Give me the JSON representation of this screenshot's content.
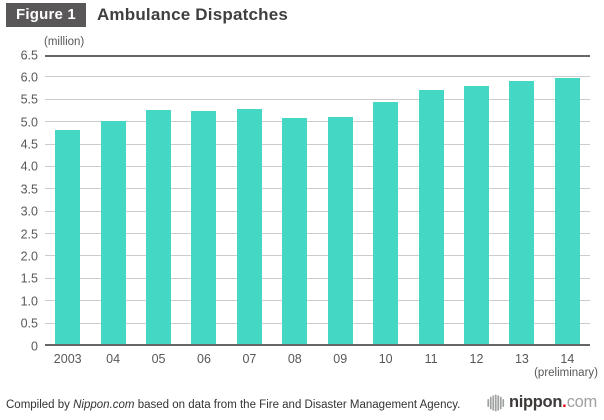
{
  "figure": {
    "badge": "Figure 1",
    "title": "Ambulance Dispatches"
  },
  "chart_data": {
    "type": "bar",
    "title": "Ambulance Dispatches",
    "unit_label": "(million)",
    "categories": [
      "2003",
      "04",
      "05",
      "06",
      "07",
      "08",
      "09",
      "10",
      "11",
      "12",
      "13",
      "14"
    ],
    "values": [
      4.83,
      5.03,
      5.28,
      5.24,
      5.29,
      5.1,
      5.12,
      5.46,
      5.71,
      5.8,
      5.92,
      5.98
    ],
    "last_category_note": "(preliminary)",
    "xlabel": "",
    "ylabel": "(million)",
    "ylim": [
      0,
      6.5
    ],
    "ytick_step": 0.5,
    "yticks": [
      "0",
      "0.5",
      "1.0",
      "1.5",
      "2.0",
      "2.5",
      "3.0",
      "3.5",
      "4.0",
      "4.5",
      "5.0",
      "5.5",
      "6.0",
      "6.5"
    ],
    "grid": true,
    "legend": "none",
    "bar_color": "#44d8c4",
    "gridline_color": "#cccccc",
    "axis_color": "#666666"
  },
  "footer": {
    "credit_prefix": "Compiled by ",
    "credit_source": "Nippon.com",
    "credit_suffix": " based on data from the Fire and Disaster Management Agency.",
    "logo": {
      "icon": "globe-stripes-icon",
      "text_bold": "nippon",
      "text_dot": ".",
      "text_tld": "com",
      "dot_color": "#e60012"
    }
  },
  "colors": {
    "badge_bg": "#595757",
    "title_text": "#3f3f3f",
    "axis_text": "#595757",
    "footer_text": "#333333"
  }
}
